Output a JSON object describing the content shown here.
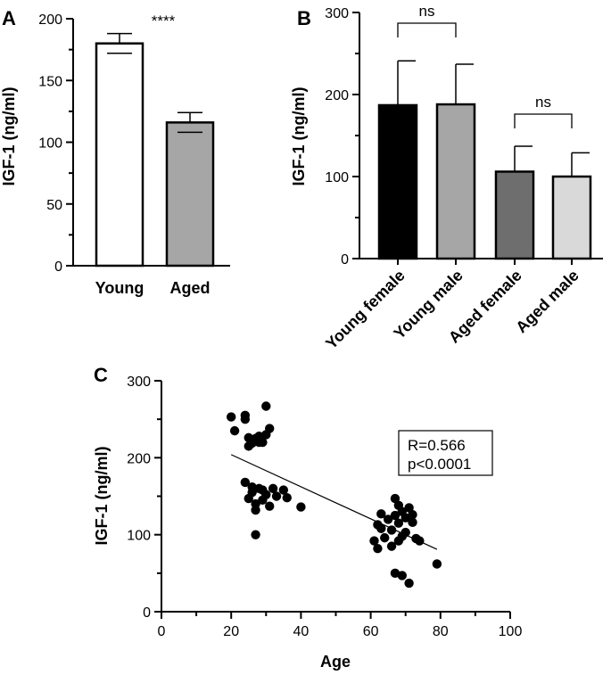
{
  "figure_panels": [
    "A",
    "B",
    "C"
  ],
  "chart_data": [
    {
      "panel": "A",
      "type": "bar",
      "categories": [
        "Young",
        "Aged"
      ],
      "values": [
        180,
        116
      ],
      "errors": [
        8,
        8
      ],
      "bar_colors": [
        "#ffffff",
        "#a6a6a6"
      ],
      "ylabel": "IGF-1 (ng/ml)",
      "ylim": [
        0,
        200
      ],
      "yticks": [
        0,
        50,
        100,
        150,
        200
      ],
      "annotations": [
        {
          "text": "****",
          "category": "Young"
        }
      ],
      "grid": false
    },
    {
      "panel": "B",
      "type": "bar",
      "categories": [
        "Young female",
        "Young male",
        "Aged female",
        "Aged male"
      ],
      "values": [
        187,
        188,
        106,
        100
      ],
      "errors": [
        54,
        49,
        31,
        29
      ],
      "bar_colors": [
        "#000000",
        "#a6a6a6",
        "#6e6e6e",
        "#d9d9d9"
      ],
      "ylabel": "IGF-1 (ng/ml)",
      "ylim": [
        0,
        300
      ],
      "yticks": [
        0,
        100,
        200,
        300
      ],
      "comparisons": [
        {
          "from": "Young female",
          "to": "Young male",
          "text": "ns"
        },
        {
          "from": "Aged female",
          "to": "Aged male",
          "text": "ns"
        }
      ],
      "grid": false
    },
    {
      "panel": "C",
      "type": "scatter",
      "xlabel": "Age",
      "ylabel": "IGF-1 (ng/ml)",
      "xlim": [
        0,
        100
      ],
      "ylim": [
        0,
        300
      ],
      "xticks": [
        0,
        20,
        40,
        60,
        80,
        100
      ],
      "yticks": [
        0,
        100,
        200,
        300
      ],
      "points": [
        [
          20,
          253
        ],
        [
          21,
          235
        ],
        [
          24,
          250
        ],
        [
          24,
          255
        ],
        [
          25,
          226
        ],
        [
          26,
          219
        ],
        [
          25,
          215
        ],
        [
          27,
          225
        ],
        [
          28,
          228
        ],
        [
          28,
          220
        ],
        [
          30,
          230
        ],
        [
          31,
          238
        ],
        [
          30,
          267
        ],
        [
          29,
          220
        ],
        [
          24,
          168
        ],
        [
          25,
          147
        ],
        [
          26,
          162
        ],
        [
          26,
          155
        ],
        [
          27,
          140
        ],
        [
          27,
          132
        ],
        [
          28,
          160
        ],
        [
          29,
          158
        ],
        [
          29,
          145
        ],
        [
          30,
          152
        ],
        [
          31,
          137
        ],
        [
          32,
          160
        ],
        [
          33,
          150
        ],
        [
          35,
          158
        ],
        [
          36,
          148
        ],
        [
          27,
          100
        ],
        [
          40,
          136
        ],
        [
          61,
          92
        ],
        [
          62,
          113
        ],
        [
          63,
          127
        ],
        [
          63,
          108
        ],
        [
          62,
          82
        ],
        [
          64,
          96
        ],
        [
          65,
          120
        ],
        [
          66,
          106
        ],
        [
          66,
          85
        ],
        [
          67,
          125
        ],
        [
          67,
          147
        ],
        [
          68,
          138
        ],
        [
          68,
          115
        ],
        [
          69,
          130
        ],
        [
          69,
          98
        ],
        [
          70,
          122
        ],
        [
          70,
          103
        ],
        [
          71,
          135
        ],
        [
          72,
          126
        ],
        [
          72,
          116
        ],
        [
          73,
          95
        ],
        [
          74,
          92
        ],
        [
          67,
          50
        ],
        [
          69,
          47
        ],
        [
          71,
          37
        ],
        [
          79,
          62
        ],
        [
          68,
          92
        ]
      ],
      "trendline": {
        "x": [
          20,
          79
        ],
        "y": [
          204,
          81
        ]
      },
      "stats": [
        "R=0.566",
        "p<0.0001"
      ],
      "grid": false
    }
  ]
}
